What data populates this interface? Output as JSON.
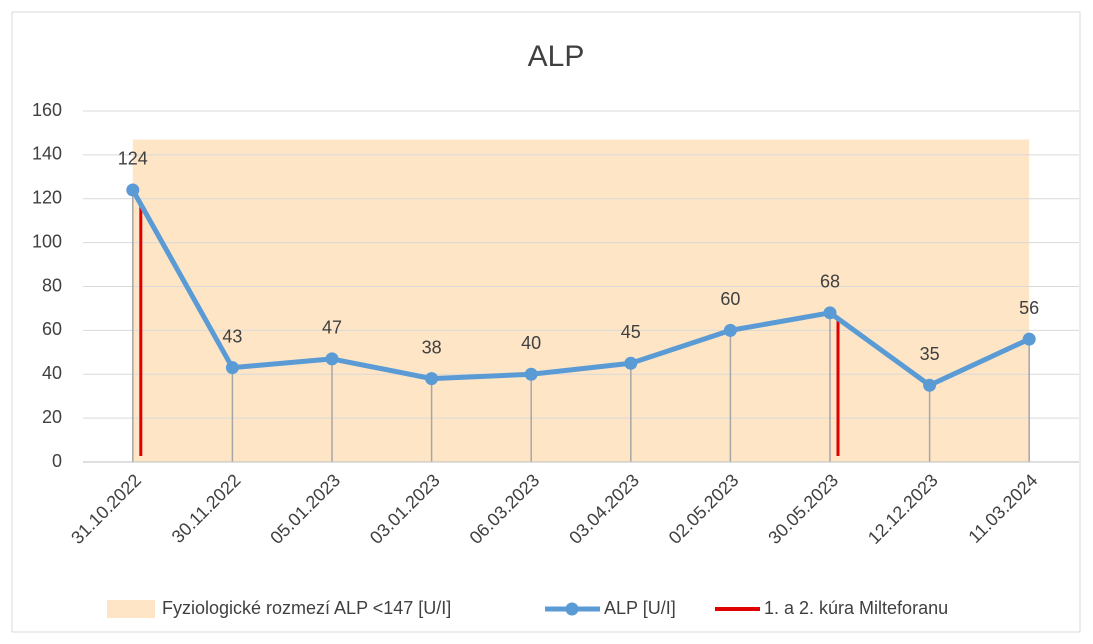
{
  "chart_data": {
    "type": "line",
    "title": "ALP",
    "categories": [
      "31.10.2022",
      "30.11.2022",
      "05.01.2023",
      "03.01.2023",
      "06.03.2023",
      "03.04.2023",
      "02.05.2023",
      "30.05.2023",
      "12.12.2023",
      "11.03.2024"
    ],
    "series": [
      {
        "name": "ALP [U/I]",
        "color": "#5b9bd5",
        "values": [
          124,
          43,
          47,
          38,
          40,
          45,
          60,
          68,
          35,
          56
        ]
      }
    ],
    "band": {
      "name": "Fyziologické rozmezí ALP <147 [U/I]",
      "color": "#fde5c6",
      "value": 147
    },
    "markers": {
      "name": "1. a 2. kúra Milteforanu",
      "color": "#e00000",
      "values": [
        118,
        null,
        null,
        null,
        null,
        null,
        null,
        66,
        null,
        null
      ]
    },
    "ylim": [
      0,
      160
    ],
    "yticks": [
      0,
      20,
      40,
      60,
      80,
      100,
      120,
      140,
      160
    ],
    "grid": true,
    "legend": "bottom"
  }
}
